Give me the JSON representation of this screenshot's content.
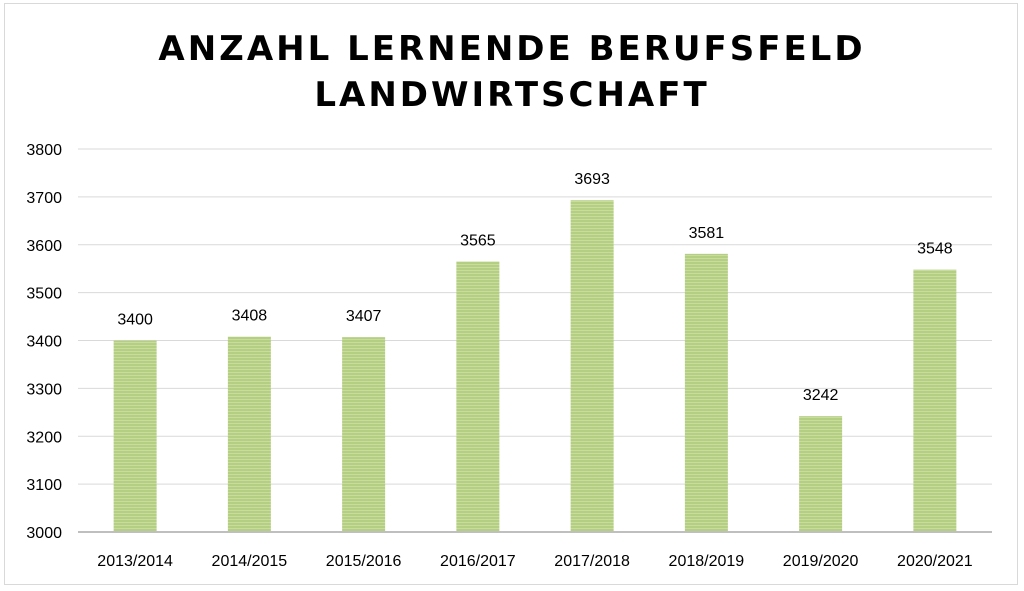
{
  "chart_data": {
    "type": "bar",
    "title_lines": [
      "ANZAHL LERNENDE BERUFSFELD",
      "LANDWIRTSCHAFT"
    ],
    "categories": [
      "2013/2014",
      "2014/2015",
      "2015/2016",
      "2016/2017",
      "2017/2018",
      "2018/2019",
      "2019/2020",
      "2020/2021"
    ],
    "values": [
      3400,
      3408,
      3407,
      3565,
      3693,
      3581,
      3242,
      3548
    ],
    "data_labels": [
      "3400",
      "3408",
      "3407",
      "3565",
      "3693",
      "3581",
      "3242",
      "3548"
    ],
    "xlabel": "",
    "ylabel": "",
    "ylim": [
      3000,
      3800
    ],
    "yticks": [
      3000,
      3100,
      3200,
      3300,
      3400,
      3500,
      3600,
      3700,
      3800
    ],
    "grid": true,
    "legend": "none",
    "colors": {
      "bar_fill": "#b5cf82",
      "bar_stripe": "#c9dca0",
      "gridline": "#d9d9d9",
      "axis": "#bfbfbf"
    }
  }
}
